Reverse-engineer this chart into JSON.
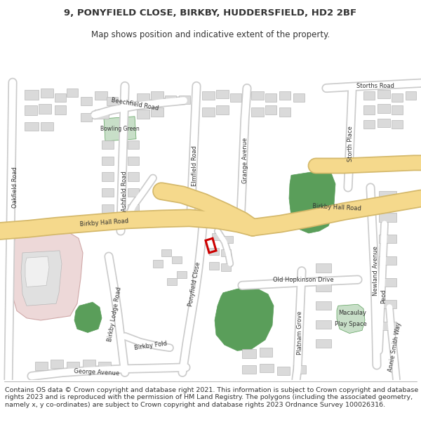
{
  "title_line1": "9, PONYFIELD CLOSE, BIRKBY, HUDDERSFIELD, HD2 2BF",
  "title_line2": "Map shows position and indicative extent of the property.",
  "footer_text": "Contains OS data © Crown copyright and database right 2021. This information is subject to Crown copyright and database rights 2023 and is reproduced with the permission of HM Land Registry. The polygons (including the associated geometry, namely x, y co-ordinates) are subject to Crown copyright and database rights 2023 Ordnance Survey 100026316.",
  "bg_color": "#f0f0ee",
  "road_color": "#ffffff",
  "road_outline_color": "#cccccc",
  "major_road_color": "#f5d98c",
  "major_road_outline_color": "#d4b86a",
  "building_color": "#dadada",
  "building_outline_color": "#b8b8b8",
  "green_color": "#5a9e5a",
  "green_light_color": "#c8dfc8",
  "pink_color": "#edd8d8",
  "highlight_color": "#cc0000",
  "text_color": "#333333",
  "title_fontsize": 9.5,
  "subtitle_fontsize": 8.5,
  "label_fontsize": 6.0,
  "footer_fontsize": 6.8
}
